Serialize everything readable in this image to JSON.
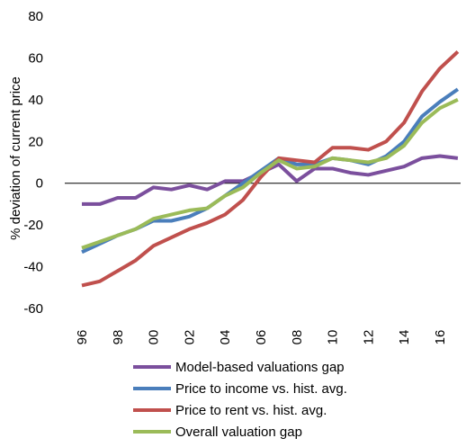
{
  "chart_data": {
    "type": "line",
    "y_label": "% deviation of current price",
    "categories": [
      "96",
      null,
      "98",
      null,
      "00",
      null,
      "02",
      null,
      "04",
      null,
      "06",
      null,
      "08",
      null,
      "10",
      null,
      "12",
      null,
      "14",
      null,
      "16",
      null
    ],
    "series": [
      {
        "name": "Model-based valuations gap",
        "color": "#7b4f9d",
        "values": [
          -10,
          -10,
          -7,
          -7,
          -2,
          -3,
          -1,
          -3,
          1,
          1,
          5,
          9,
          1,
          7,
          7,
          5,
          4,
          6,
          8,
          12,
          13,
          12
        ]
      },
      {
        "name": "Price to income vs. hist. avg.",
        "color": "#4a7ebb",
        "values": [
          -33,
          -29,
          -25,
          -22,
          -18,
          -18,
          -16,
          -12,
          -6,
          0,
          6,
          12,
          9,
          9,
          12,
          11,
          9,
          13,
          20,
          32,
          39,
          45
        ]
      },
      {
        "name": "Price to rent vs. hist. avg.",
        "color": "#c0504d",
        "values": [
          -49,
          -47,
          -42,
          -37,
          -30,
          -26,
          -22,
          -19,
          -15,
          -8,
          3,
          12,
          11,
          10,
          17,
          17,
          16,
          20,
          29,
          44,
          55,
          63
        ]
      },
      {
        "name": "Overall valuation gap",
        "color": "#9bbb59",
        "values": [
          -31,
          -28,
          -25,
          -22,
          -17,
          -15,
          -13,
          -12,
          -6,
          -2,
          5,
          11,
          7,
          8,
          12,
          11,
          10,
          12,
          18,
          29,
          36,
          40
        ]
      }
    ],
    "ylim": [
      -60,
      80
    ],
    "yticks": [
      -60,
      -40,
      -20,
      0,
      20,
      40,
      60,
      80
    ]
  }
}
